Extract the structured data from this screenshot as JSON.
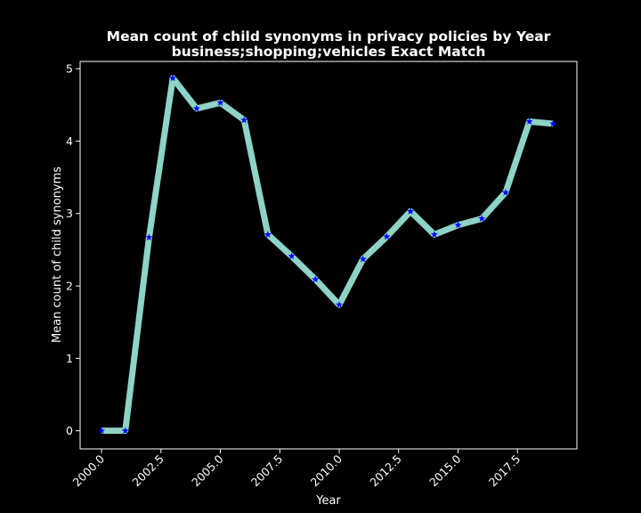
{
  "chart_data": {
    "type": "line",
    "title": "Mean count of child synonyms in privacy policies by Year",
    "subtitle": "business;shopping;vehicles Exact Match",
    "xlabel": "Year",
    "ylabel": "Mean count of child synonyms",
    "xlim": [
      1999.1,
      2020.0
    ],
    "ylim": [
      -0.25,
      5.1
    ],
    "xticks": [
      2000.0,
      2002.5,
      2005.0,
      2007.5,
      2010.0,
      2012.5,
      2015.0,
      2017.5
    ],
    "xtick_labels": [
      "2000.0",
      "2002.5",
      "2005.0",
      "2007.5",
      "2010.0",
      "2012.5",
      "2015.0",
      "2017.5"
    ],
    "yticks": [
      0,
      1,
      2,
      3,
      4,
      5
    ],
    "ytick_labels": [
      "0",
      "1",
      "2",
      "3",
      "4",
      "5"
    ],
    "grid": false,
    "legend": "none",
    "x": [
      2000,
      2001,
      2002,
      2003,
      2004,
      2005,
      2006,
      2007,
      2008,
      2009,
      2010,
      2011,
      2012,
      2013,
      2014,
      2015,
      2016,
      2017,
      2018,
      2019
    ],
    "values": [
      0.0,
      0.0,
      2.67,
      4.87,
      4.45,
      4.53,
      4.29,
      2.71,
      2.41,
      2.09,
      1.74,
      2.37,
      2.68,
      3.03,
      2.71,
      2.84,
      2.93,
      3.29,
      4.27,
      4.24
    ],
    "line_color": "#8dd3c7",
    "marker_color": "#0000ff",
    "marker": "star",
    "background": "#000000",
    "foreground": "#ffffff"
  }
}
